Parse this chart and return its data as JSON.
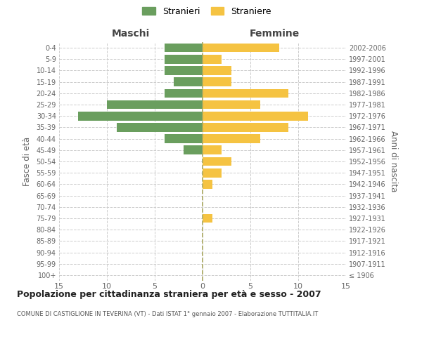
{
  "age_groups": [
    "100+",
    "95-99",
    "90-94",
    "85-89",
    "80-84",
    "75-79",
    "70-74",
    "65-69",
    "60-64",
    "55-59",
    "50-54",
    "45-49",
    "40-44",
    "35-39",
    "30-34",
    "25-29",
    "20-24",
    "15-19",
    "10-14",
    "5-9",
    "0-4"
  ],
  "birth_years": [
    "≤ 1906",
    "1907-1911",
    "1912-1916",
    "1917-1921",
    "1922-1926",
    "1927-1931",
    "1932-1936",
    "1937-1941",
    "1942-1946",
    "1947-1951",
    "1952-1956",
    "1957-1961",
    "1962-1966",
    "1967-1971",
    "1972-1976",
    "1977-1981",
    "1982-1986",
    "1987-1991",
    "1992-1996",
    "1997-2001",
    "2002-2006"
  ],
  "maschi": [
    0,
    0,
    0,
    0,
    0,
    0,
    0,
    0,
    0,
    0,
    0,
    2,
    4,
    9,
    13,
    10,
    4,
    3,
    4,
    4,
    4
  ],
  "femmine": [
    0,
    0,
    0,
    0,
    0,
    1,
    0,
    0,
    1,
    2,
    3,
    2,
    6,
    9,
    11,
    6,
    9,
    3,
    3,
    2,
    8
  ],
  "color_maschi": "#6a9e5e",
  "color_femmine": "#f5c342",
  "title": "Popolazione per cittadinanza straniera per età e sesso - 2007",
  "subtitle": "COMUNE DI CASTIGLIONE IN TEVERINA (VT) - Dati ISTAT 1° gennaio 2007 - Elaborazione TUTTITALIA.IT",
  "ylabel_left": "Fasce di età",
  "ylabel_right": "Anni di nascita",
  "xlabel_left": "Maschi",
  "xlabel_right": "Femmine",
  "legend_maschi": "Stranieri",
  "legend_femmine": "Straniere",
  "xlim": 15,
  "background_color": "#ffffff",
  "grid_color": "#cccccc"
}
